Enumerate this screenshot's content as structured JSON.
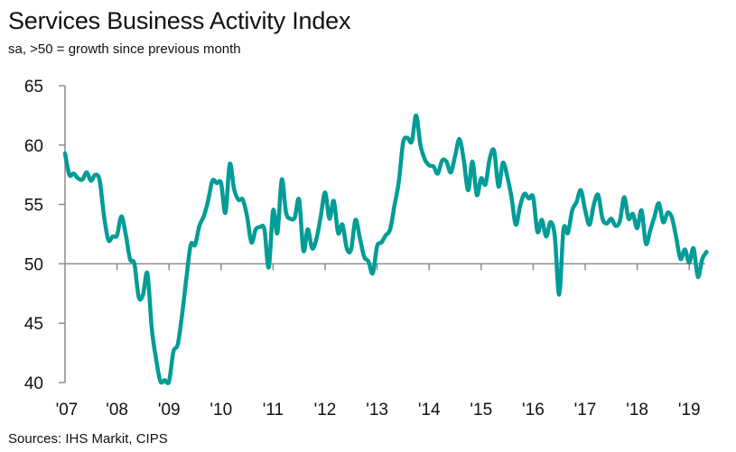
{
  "chart_data": {
    "type": "line",
    "title": "Services Business Activity Index",
    "subtitle": "sa, >50 = growth since previous month",
    "source": "Sources: IHS Markit, CIPS",
    "xlabel": "",
    "ylabel": "",
    "ylim": [
      40,
      65
    ],
    "yticks": [
      "65",
      "60",
      "55",
      "50",
      "45",
      "40"
    ],
    "ytick_values": [
      65,
      60,
      55,
      50,
      45,
      40
    ],
    "xticks": [
      "'07",
      "'08",
      "'09",
      "'10",
      "'11",
      "'12",
      "'13",
      "'14",
      "'15",
      "'16",
      "'17",
      "'18",
      "'19"
    ],
    "x_start": "2007-01",
    "x_end": "2019-05",
    "frequency": "monthly",
    "baseline": 50,
    "grid": false,
    "legend": "none",
    "line_color": "#009c98",
    "axis_color": "#8c8c8c",
    "series": [
      {
        "name": "Services Business Activity Index",
        "values": [
          59.3,
          57.5,
          57.6,
          57.2,
          57.1,
          57.7,
          57.0,
          57.5,
          57.0,
          54.0,
          52.0,
          52.3,
          52.4,
          54.0,
          52.5,
          50.4,
          50.0,
          47.2,
          47.4,
          49.2,
          44.6,
          42.0,
          40.1,
          40.2,
          40.1,
          42.6,
          43.2,
          45.7,
          48.8,
          51.6,
          51.6,
          53.2,
          54.0,
          55.3,
          57.0,
          56.8,
          56.8,
          54.3,
          58.4,
          56.3,
          55.4,
          55.4,
          54.0,
          51.8,
          52.9,
          53.1,
          52.9,
          49.7,
          54.5,
          52.6,
          57.1,
          54.3,
          53.8,
          53.9,
          55.4,
          51.1,
          52.9,
          51.3,
          52.1,
          54.0,
          56.0,
          53.8,
          55.3,
          52.6,
          53.3,
          51.3,
          51.2,
          53.7,
          52.2,
          50.6,
          50.2,
          49.2,
          51.5,
          51.8,
          52.4,
          52.9,
          54.9,
          56.9,
          60.2,
          60.6,
          60.3,
          62.5,
          60.0,
          58.8,
          58.3,
          58.2,
          57.6,
          58.7,
          58.6,
          57.7,
          59.1,
          60.5,
          58.7,
          56.2,
          58.6,
          55.8,
          57.2,
          56.7,
          58.9,
          59.5,
          56.5,
          58.5,
          57.4,
          55.6,
          53.3,
          54.9,
          55.9,
          55.5,
          55.6,
          52.7,
          53.7,
          52.3,
          53.5,
          52.3,
          47.4,
          52.9,
          52.6,
          54.5,
          55.2,
          56.2,
          54.5,
          53.3,
          55.0,
          55.8,
          53.8,
          53.4,
          53.8,
          53.2,
          53.6,
          55.6,
          53.8,
          54.2,
          53.0,
          54.5,
          51.7,
          52.8,
          54.0,
          55.1,
          53.5,
          54.3,
          53.9,
          52.2,
          50.4,
          51.2,
          50.1,
          51.3,
          48.9,
          50.4,
          51.0
        ]
      }
    ]
  }
}
